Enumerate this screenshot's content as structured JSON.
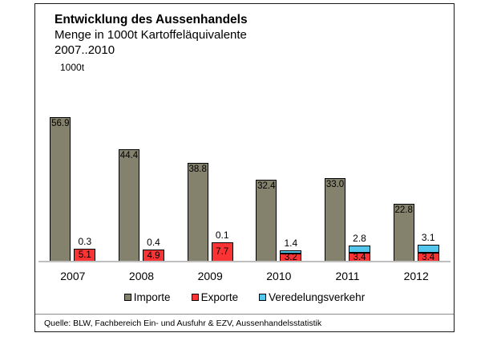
{
  "header": {
    "title": "Entwicklung des Aussenhandels",
    "subtitle": "Menge in 1000t Kartoffeläquivalente",
    "subtitle_years": "2007..2010",
    "unit_label": "1000t"
  },
  "footer": {
    "source": "Quelle: BLW, Fachbereich Ein- und Ausfuhr & EZV, Aussenhandelsstatistik"
  },
  "colors": {
    "importe": "#84816C",
    "exporte": "#FA3434",
    "veredelungsverkehr": "#54C6EB",
    "bar_border": "#000000",
    "baseline": "#BFBFBF",
    "frame_border": "#1A1A1A"
  },
  "chart_data": {
    "type": "bar",
    "title": "Entwicklung des Aussenhandels",
    "subtitle": "Menge in 1000t Kartoffeläquivalente 2007..2010",
    "ylabel": "1000t",
    "xlabel": "",
    "categories": [
      "2007",
      "2008",
      "2009",
      "2010",
      "2011",
      "2012"
    ],
    "series": [
      {
        "name": "Importe",
        "color": "#84816C",
        "stacked": false,
        "values": [
          56.9,
          44.4,
          38.8,
          32.4,
          33.0,
          22.8
        ]
      },
      {
        "name": "Exporte",
        "color": "#FA3434",
        "stacked": true,
        "values": [
          5.1,
          4.9,
          7.7,
          3.2,
          3.4,
          3.4
        ]
      },
      {
        "name": "Veredelungsverkehr",
        "color": "#54C6EB",
        "stacked": true,
        "values": [
          0.3,
          0.4,
          0.1,
          1.4,
          2.8,
          3.1
        ]
      }
    ],
    "stacking_note": "Exporte and Veredelungsverkehr are stacked in one column; Importe is a separate column per year",
    "value_labels": true,
    "grid": false,
    "legend_position": "bottom",
    "ylim": [
      0,
      70
    ]
  }
}
